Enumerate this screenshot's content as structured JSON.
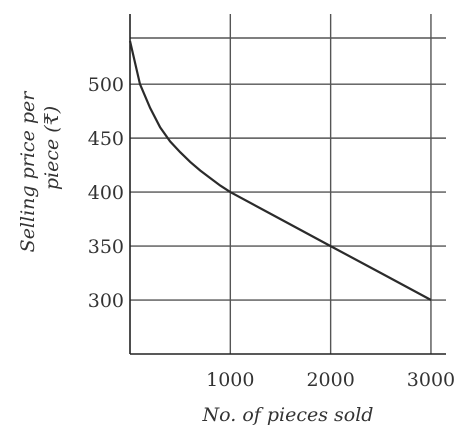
{
  "chart_data": {
    "type": "line",
    "xlabel": "No. of pieces sold",
    "ylabel_line1": "Selling price per",
    "ylabel_line2": "piece (₹)",
    "xlim": [
      0,
      3150
    ],
    "ylim": [
      250,
      565
    ],
    "x_ticks": [
      1000,
      2000,
      3000
    ],
    "x_tick_labels": [
      "1000",
      "2000",
      "3000"
    ],
    "y_ticks": [
      300,
      350,
      400,
      450,
      500
    ],
    "y_tick_labels": [
      "300",
      "350",
      "400",
      "450",
      "500"
    ],
    "grid": true,
    "series": [
      {
        "x": [
          0,
          100,
          200,
          300,
          400,
          500,
          600,
          700,
          800,
          900,
          1000,
          1500,
          2000,
          2500,
          3000
        ],
        "y": [
          540,
          500,
          478,
          460,
          447,
          437,
          428,
          420,
          413,
          406,
          400,
          375,
          350,
          325,
          300
        ]
      }
    ]
  }
}
